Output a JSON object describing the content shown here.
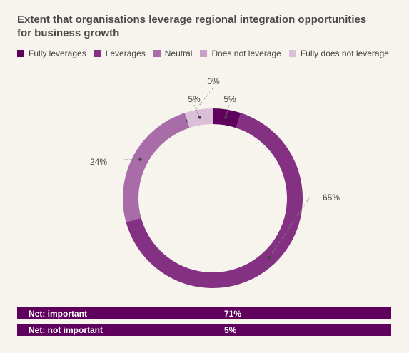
{
  "chart_data": {
    "type": "pie",
    "donut": true,
    "title": "Extent that organisations leverage regional integration opportunities for business growth",
    "categories": [
      "Fully leverages",
      "Leverages",
      "Neutral",
      "Does not leverage",
      "Fully does not leverage"
    ],
    "values": [
      5,
      65,
      24,
      0,
      5
    ],
    "value_labels": [
      "5%",
      "65%",
      "24%",
      "0%",
      "5%"
    ],
    "colors": [
      "#5e005c",
      "#843083",
      "#a86da8",
      "#c9a0c9",
      "#dbbfd9"
    ],
    "legend_placement": "top-left"
  },
  "net": [
    {
      "label": "Net: important",
      "value": "71%"
    },
    {
      "label": "Net: not important",
      "value": "5%"
    }
  ]
}
